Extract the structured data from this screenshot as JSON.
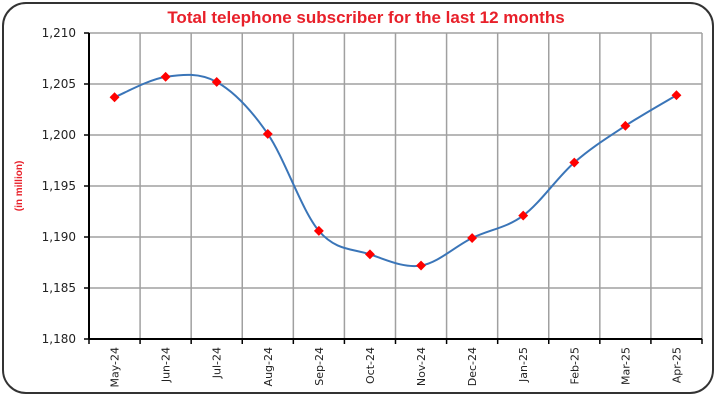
{
  "chart_data": {
    "type": "line",
    "title": "Total telephone subscriber for the last 12 months",
    "ylabel": "(in million)",
    "xlabel": "",
    "categories": [
      "May-24",
      "Jun-24",
      "Jul-24",
      "Aug-24",
      "Sep-24",
      "Oct-24",
      "Nov-24",
      "Dec-24",
      "Jan-25",
      "Feb-25",
      "Mar-25",
      "Apr-25"
    ],
    "values": [
      1203.7,
      1205.7,
      1205.2,
      1200.1,
      1190.6,
      1188.3,
      1187.2,
      1189.9,
      1192.1,
      1197.3,
      1200.9,
      1203.9
    ],
    "ylim": [
      1180,
      1210
    ],
    "yticks": [
      1180,
      1185,
      1190,
      1195,
      1200,
      1205,
      1210
    ],
    "ytick_labels": [
      "1,180",
      "1,185",
      "1,190",
      "1,195",
      "1,200",
      "1,205",
      "1,210"
    ],
    "grid": true,
    "smooth": true,
    "line_color": "#3a75b8",
    "marker_color": "#ff0000",
    "title_color": "#e8202a"
  }
}
